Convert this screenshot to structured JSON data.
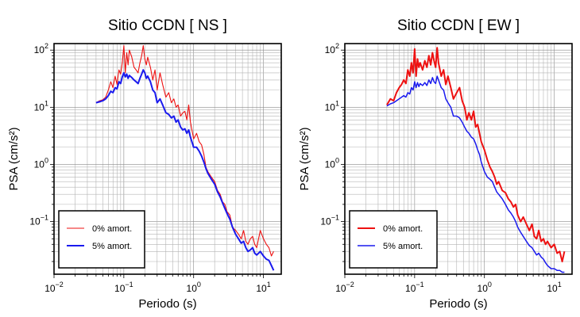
{
  "chart_data": [
    {
      "type": "line",
      "title": "Sitio CCDN [ NS ]",
      "xlabel": "Periodo (s)",
      "ylabel": "PSA (cm/s²)",
      "xscale": "log",
      "yscale": "log",
      "xlim": [
        0.01,
        18
      ],
      "ylim": [
        0.012,
        130
      ],
      "grid": true,
      "legend_position": "bottom-left",
      "x_ticks": [
        {
          "value": 0.01,
          "base": "10",
          "exp": "−2"
        },
        {
          "value": 0.1,
          "base": "10",
          "exp": "−1"
        },
        {
          "value": 1,
          "base": "10",
          "exp": "0"
        },
        {
          "value": 10,
          "base": "10",
          "exp": "1"
        }
      ],
      "y_ticks": [
        {
          "value": 0.1,
          "base": "10",
          "exp": "−1"
        },
        {
          "value": 1,
          "base": "10",
          "exp": "0"
        },
        {
          "value": 10,
          "base": "10",
          "exp": "1"
        },
        {
          "value": 100,
          "base": "10",
          "exp": "2"
        }
      ],
      "series": [
        {
          "name": "0% amort.",
          "color": "#ee1111",
          "width": 1.1,
          "x": [
            0.04,
            0.045,
            0.05,
            0.055,
            0.06,
            0.065,
            0.07,
            0.075,
            0.08,
            0.085,
            0.09,
            0.095,
            0.1,
            0.105,
            0.11,
            0.115,
            0.12,
            0.13,
            0.14,
            0.15,
            0.16,
            0.17,
            0.18,
            0.19,
            0.2,
            0.21,
            0.22,
            0.24,
            0.26,
            0.28,
            0.3,
            0.33,
            0.36,
            0.4,
            0.44,
            0.48,
            0.52,
            0.56,
            0.6,
            0.65,
            0.7,
            0.75,
            0.8,
            0.85,
            0.9,
            1.0,
            1.1,
            1.2,
            1.3,
            1.4,
            1.5,
            1.6,
            1.8,
            2.0,
            2.2,
            2.4,
            2.6,
            2.8,
            3.0,
            3.3,
            3.6,
            4.0,
            4.4,
            4.8,
            5.2,
            5.6,
            6.0,
            6.5,
            7.0,
            7.5,
            8.0,
            9.0,
            10.0,
            11.0,
            12.0,
            13.0,
            14.0
          ],
          "y": [
            12,
            13,
            13.5,
            15,
            20,
            28,
            22,
            35,
            25,
            45,
            38,
            60,
            120,
            40,
            90,
            55,
            100,
            75,
            50,
            45,
            40,
            60,
            80,
            120,
            70,
            55,
            75,
            50,
            30,
            45,
            20,
            40,
            25,
            15,
            18,
            12,
            14,
            10,
            11,
            7,
            8,
            8.5,
            6,
            11,
            5.5,
            2.8,
            3.5,
            2.5,
            2.2,
            1.5,
            0.9,
            0.75,
            0.6,
            0.5,
            0.35,
            0.3,
            0.22,
            0.2,
            0.15,
            0.13,
            0.08,
            0.07,
            0.06,
            0.05,
            0.07,
            0.045,
            0.04,
            0.05,
            0.055,
            0.04,
            0.035,
            0.07,
            0.05,
            0.04,
            0.035,
            0.025,
            0.03
          ]
        },
        {
          "name": "5% amort.",
          "color": "#1a1aee",
          "width": 2,
          "x": [
            0.04,
            0.045,
            0.05,
            0.055,
            0.06,
            0.065,
            0.07,
            0.075,
            0.08,
            0.085,
            0.09,
            0.095,
            0.1,
            0.105,
            0.11,
            0.115,
            0.12,
            0.13,
            0.14,
            0.15,
            0.16,
            0.17,
            0.18,
            0.19,
            0.2,
            0.21,
            0.22,
            0.24,
            0.26,
            0.28,
            0.3,
            0.33,
            0.36,
            0.4,
            0.44,
            0.48,
            0.52,
            0.56,
            0.6,
            0.65,
            0.7,
            0.75,
            0.8,
            0.85,
            0.9,
            1.0,
            1.1,
            1.2,
            1.3,
            1.4,
            1.5,
            1.6,
            1.8,
            2.0,
            2.2,
            2.4,
            2.6,
            2.8,
            3.0,
            3.3,
            3.6,
            4.0,
            4.4,
            4.8,
            5.2,
            5.6,
            6.0,
            6.5,
            7.0,
            7.5,
            8.0,
            9.0,
            10.0,
            11.0,
            12.0,
            13.0,
            14.0
          ],
          "y": [
            12,
            12.5,
            13,
            14,
            16,
            19,
            18,
            22,
            21,
            28,
            26,
            34,
            40,
            34,
            38,
            32,
            36,
            33,
            30,
            28,
            26,
            32,
            38,
            45,
            40,
            32,
            35,
            28,
            20,
            18,
            12,
            14,
            11,
            8,
            7.5,
            6.5,
            7,
            5.5,
            6,
            4.5,
            4,
            4.2,
            3.5,
            4,
            3,
            2,
            2,
            1.7,
            1.4,
            1.1,
            0.85,
            0.7,
            0.55,
            0.45,
            0.33,
            0.27,
            0.21,
            0.17,
            0.14,
            0.11,
            0.08,
            0.06,
            0.05,
            0.042,
            0.045,
            0.035,
            0.03,
            0.032,
            0.035,
            0.028,
            0.026,
            0.03,
            0.025,
            0.022,
            0.021,
            0.017,
            0.014
          ]
        }
      ]
    },
    {
      "type": "line",
      "title": "Sitio CCDN [ EW ]",
      "xlabel": "Periodo (s)",
      "ylabel": "PSA (cm/s²)",
      "xscale": "log",
      "yscale": "log",
      "xlim": [
        0.01,
        18
      ],
      "ylim": [
        0.012,
        130
      ],
      "grid": true,
      "legend_position": "bottom-left",
      "x_ticks": [
        {
          "value": 0.01,
          "base": "10",
          "exp": "−2"
        },
        {
          "value": 0.1,
          "base": "10",
          "exp": "−1"
        },
        {
          "value": 1,
          "base": "10",
          "exp": "0"
        },
        {
          "value": 10,
          "base": "10",
          "exp": "1"
        }
      ],
      "y_ticks": [
        {
          "value": 0.1,
          "base": "10",
          "exp": "−1"
        },
        {
          "value": 1,
          "base": "10",
          "exp": "0"
        },
        {
          "value": 10,
          "base": "10",
          "exp": "1"
        },
        {
          "value": 100,
          "base": "10",
          "exp": "2"
        }
      ],
      "series": [
        {
          "name": "0% amort.",
          "color": "#ee1111",
          "width": 2,
          "x": [
            0.04,
            0.045,
            0.05,
            0.055,
            0.06,
            0.065,
            0.07,
            0.075,
            0.08,
            0.085,
            0.09,
            0.095,
            0.1,
            0.105,
            0.11,
            0.115,
            0.12,
            0.13,
            0.14,
            0.15,
            0.16,
            0.17,
            0.18,
            0.19,
            0.2,
            0.21,
            0.22,
            0.24,
            0.26,
            0.28,
            0.3,
            0.33,
            0.36,
            0.4,
            0.44,
            0.48,
            0.52,
            0.56,
            0.6,
            0.65,
            0.7,
            0.75,
            0.8,
            0.85,
            0.9,
            1.0,
            1.1,
            1.2,
            1.3,
            1.4,
            1.5,
            1.6,
            1.8,
            2.0,
            2.2,
            2.4,
            2.6,
            2.8,
            3.0,
            3.3,
            3.6,
            4.0,
            4.4,
            4.8,
            5.2,
            5.6,
            6.0,
            6.5,
            7.0,
            7.5,
            8.0,
            9.0,
            10.0,
            11.0,
            12.0,
            13.0,
            14.0
          ],
          "y": [
            11,
            14,
            13,
            18,
            22,
            25,
            30,
            26,
            45,
            35,
            60,
            40,
            105,
            35,
            70,
            50,
            60,
            45,
            65,
            50,
            80,
            55,
            90,
            65,
            50,
            110,
            60,
            35,
            45,
            25,
            35,
            22,
            14,
            18,
            22,
            13,
            10,
            6,
            8,
            6,
            8.5,
            4.5,
            5,
            3.5,
            2.5,
            1.8,
            1.2,
            0.9,
            0.75,
            0.6,
            0.45,
            0.5,
            0.35,
            0.32,
            0.25,
            0.22,
            0.18,
            0.2,
            0.13,
            0.1,
            0.12,
            0.09,
            0.07,
            0.09,
            0.055,
            0.05,
            0.07,
            0.045,
            0.05,
            0.04,
            0.045,
            0.035,
            0.04,
            0.028,
            0.03,
            0.02,
            0.03
          ]
        },
        {
          "name": "5% amort.",
          "color": "#1a1aee",
          "width": 1.5,
          "x": [
            0.04,
            0.045,
            0.05,
            0.055,
            0.06,
            0.065,
            0.07,
            0.075,
            0.08,
            0.085,
            0.09,
            0.095,
            0.1,
            0.105,
            0.11,
            0.115,
            0.12,
            0.13,
            0.14,
            0.15,
            0.16,
            0.17,
            0.18,
            0.19,
            0.2,
            0.21,
            0.22,
            0.24,
            0.26,
            0.28,
            0.3,
            0.33,
            0.36,
            0.4,
            0.44,
            0.48,
            0.52,
            0.56,
            0.6,
            0.65,
            0.7,
            0.75,
            0.8,
            0.85,
            0.9,
            1.0,
            1.1,
            1.2,
            1.3,
            1.4,
            1.5,
            1.6,
            1.8,
            2.0,
            2.2,
            2.4,
            2.6,
            2.8,
            3.0,
            3.3,
            3.6,
            4.0,
            4.4,
            4.8,
            5.2,
            5.6,
            6.0,
            6.5,
            7.0,
            7.5,
            8.0,
            9.0,
            10.0,
            11.0,
            12.0,
            13.0,
            14.0
          ],
          "y": [
            10.5,
            11.5,
            12,
            13,
            14,
            15,
            16,
            15,
            18,
            17,
            22,
            20,
            28,
            22,
            27,
            23,
            26,
            24,
            27,
            24,
            30,
            26,
            33,
            28,
            26,
            35,
            30,
            22,
            20,
            14,
            12,
            10,
            7,
            7,
            6.5,
            5.5,
            4.5,
            3.8,
            3.5,
            3,
            2.8,
            2.3,
            1.8,
            1.5,
            1.1,
            0.75,
            0.6,
            0.55,
            0.5,
            0.4,
            0.33,
            0.3,
            0.25,
            0.2,
            0.16,
            0.14,
            0.12,
            0.1,
            0.08,
            0.065,
            0.055,
            0.045,
            0.038,
            0.035,
            0.03,
            0.026,
            0.028,
            0.024,
            0.022,
            0.019,
            0.017,
            0.015,
            0.015,
            0.014,
            0.014,
            0.013,
            0.013
          ]
        }
      ]
    }
  ]
}
